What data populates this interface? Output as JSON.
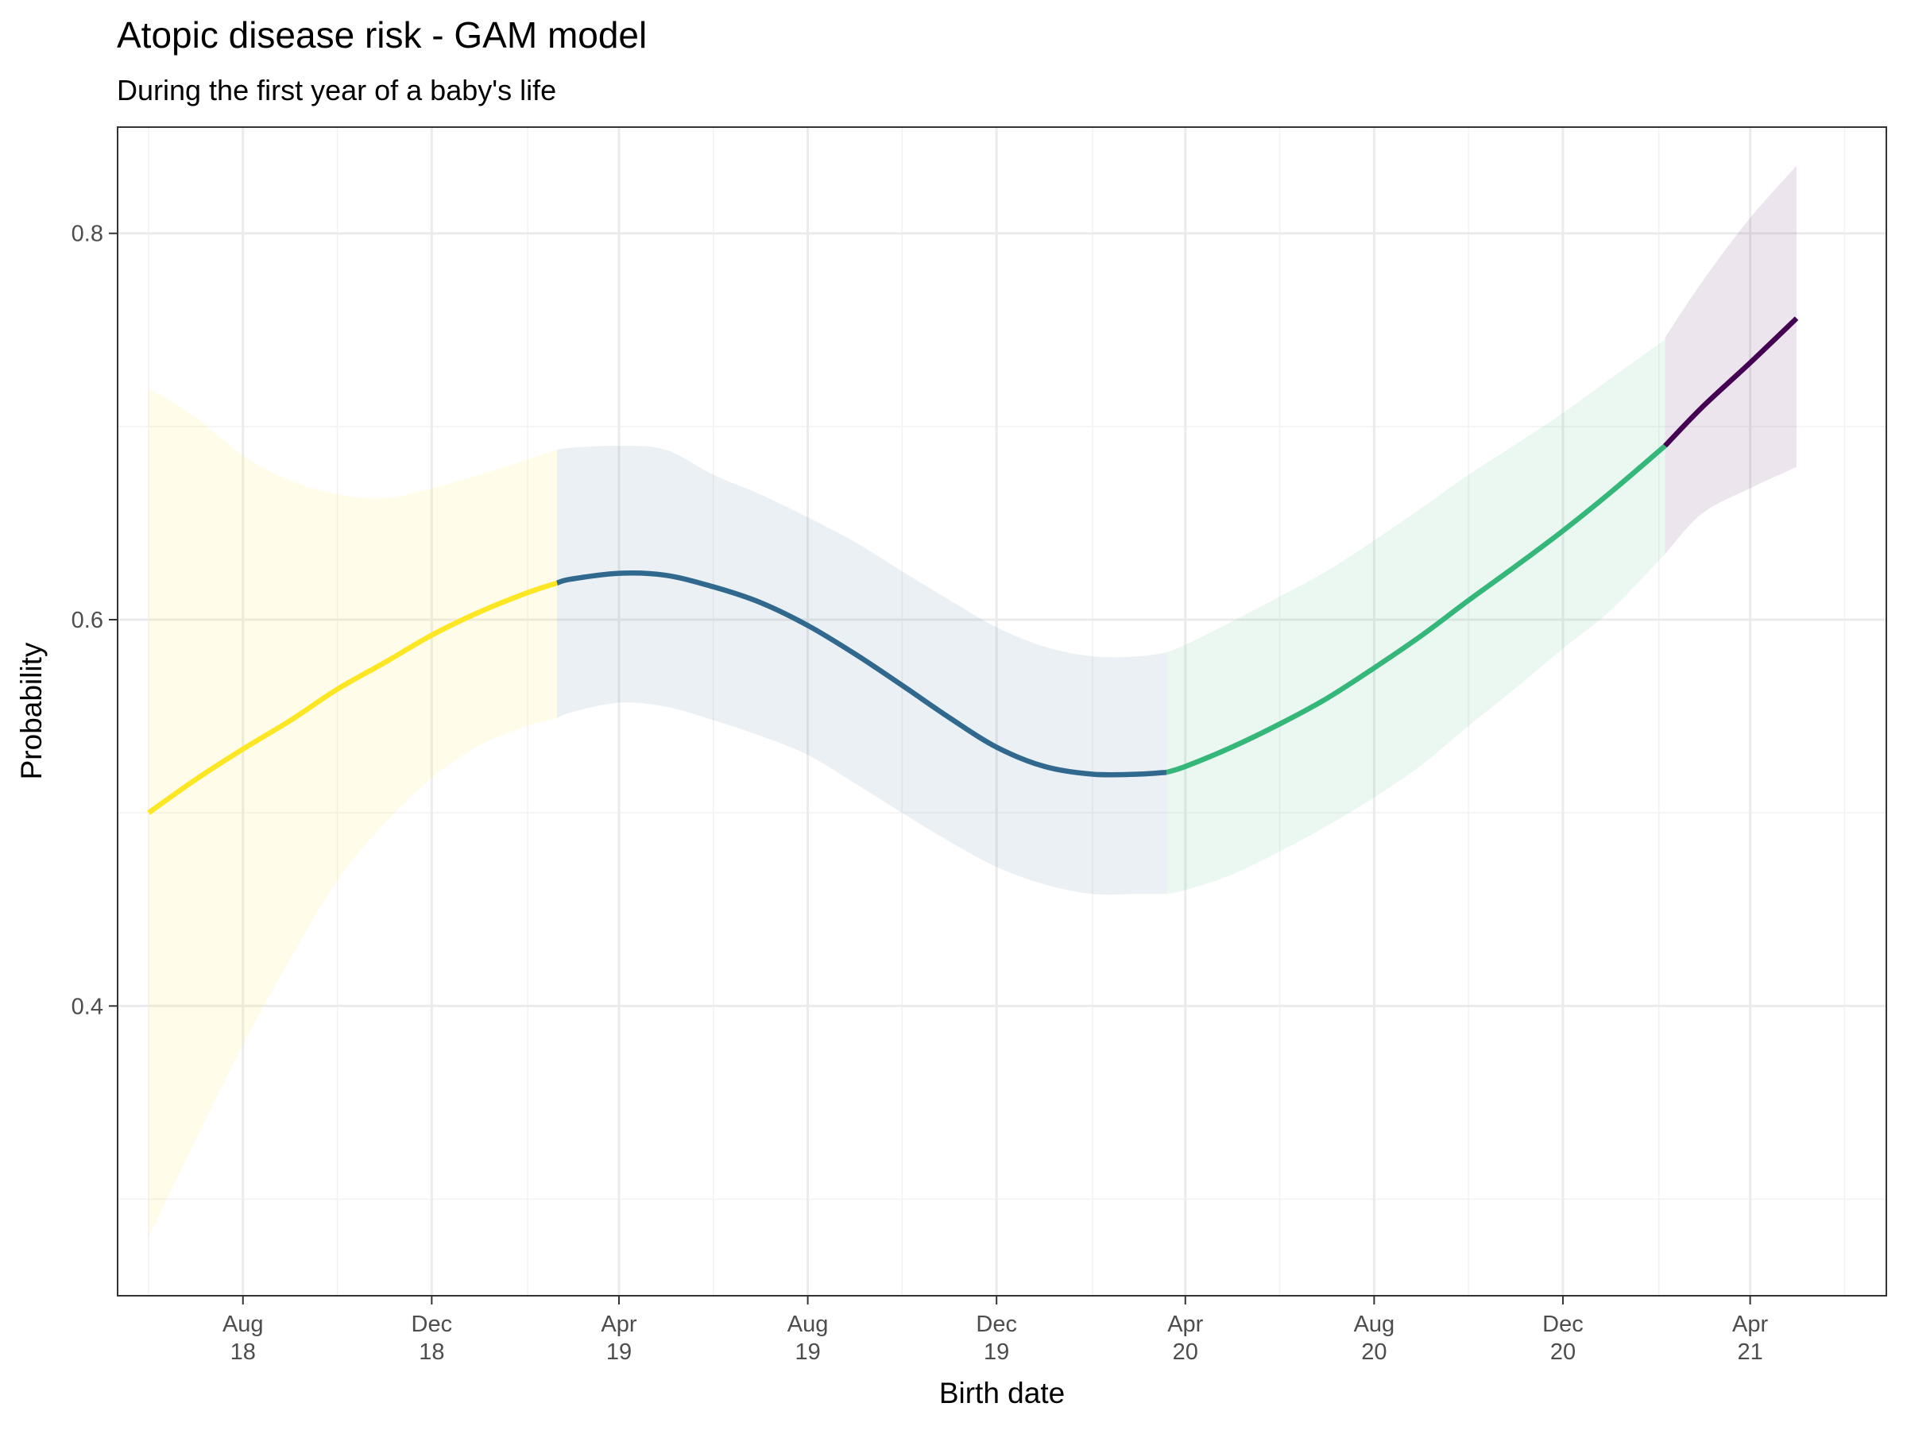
{
  "chart_data": {
    "type": "line",
    "title": "Atopic disease risk - GAM model",
    "subtitle": "During the first year of a baby's life",
    "xlabel": "Birth date",
    "ylabel": "Probability",
    "xlim": [
      "2018-05-12",
      "2021-06-28"
    ],
    "ylim": [
      0.25,
      0.855
    ],
    "x_ticks": [
      {
        "date": "2018-08-01",
        "label": [
          "Aug",
          "18"
        ]
      },
      {
        "date": "2018-12-01",
        "label": [
          "Dec",
          "18"
        ]
      },
      {
        "date": "2019-04-01",
        "label": [
          "Apr",
          "19"
        ]
      },
      {
        "date": "2019-08-01",
        "label": [
          "Aug",
          "19"
        ]
      },
      {
        "date": "2019-12-01",
        "label": [
          "Dec",
          "19"
        ]
      },
      {
        "date": "2020-04-01",
        "label": [
          "Apr",
          "20"
        ]
      },
      {
        "date": "2020-08-01",
        "label": [
          "Aug",
          "20"
        ]
      },
      {
        "date": "2020-12-01",
        "label": [
          "Dec",
          "20"
        ]
      },
      {
        "date": "2021-04-01",
        "label": [
          "Apr",
          "21"
        ]
      }
    ],
    "x_minor_ticks": [
      "2018-06-01",
      "2018-10-01",
      "2019-02-01",
      "2019-06-01",
      "2019-10-01",
      "2020-02-01",
      "2020-06-01",
      "2020-10-01",
      "2021-02-01",
      "2021-06-01"
    ],
    "y_ticks": [
      0.4,
      0.6,
      0.8
    ],
    "y_minor_ticks": [
      0.3,
      0.5,
      0.7
    ],
    "grid": true,
    "legend": "none",
    "series": [
      {
        "color": "#FDE725",
        "points": [
          {
            "x": "2018-06-01",
            "y": 0.5,
            "lo": 0.28,
            "hi": 0.72
          },
          {
            "x": "2018-07-01",
            "y": 0.517,
            "lo": 0.33,
            "hi": 0.705
          },
          {
            "x": "2018-08-01",
            "y": 0.533,
            "lo": 0.38,
            "hi": 0.685
          },
          {
            "x": "2018-09-01",
            "y": 0.548,
            "lo": 0.425,
            "hi": 0.672
          },
          {
            "x": "2018-10-01",
            "y": 0.564,
            "lo": 0.465,
            "hi": 0.665
          },
          {
            "x": "2018-11-01",
            "y": 0.578,
            "lo": 0.495,
            "hi": 0.663
          },
          {
            "x": "2018-12-01",
            "y": 0.592,
            "lo": 0.518,
            "hi": 0.668
          },
          {
            "x": "2019-01-01",
            "y": 0.604,
            "lo": 0.535,
            "hi": 0.675
          },
          {
            "x": "2019-02-01",
            "y": 0.614,
            "lo": 0.545,
            "hi": 0.683
          },
          {
            "x": "2019-02-20",
            "y": 0.619,
            "lo": 0.549,
            "hi": 0.688
          }
        ]
      },
      {
        "color": "#31688E",
        "points": [
          {
            "x": "2019-02-20",
            "y": 0.619,
            "lo": 0.549,
            "hi": 0.688
          },
          {
            "x": "2019-03-01",
            "y": 0.621,
            "lo": 0.552,
            "hi": 0.689
          },
          {
            "x": "2019-04-01",
            "y": 0.624,
            "lo": 0.557,
            "hi": 0.69
          },
          {
            "x": "2019-05-01",
            "y": 0.623,
            "lo": 0.555,
            "hi": 0.688
          },
          {
            "x": "2019-06-01",
            "y": 0.617,
            "lo": 0.548,
            "hi": 0.675
          },
          {
            "x": "2019-07-01",
            "y": 0.609,
            "lo": 0.54,
            "hi": 0.665
          },
          {
            "x": "2019-08-01",
            "y": 0.597,
            "lo": 0.53,
            "hi": 0.653
          },
          {
            "x": "2019-09-01",
            "y": 0.582,
            "lo": 0.515,
            "hi": 0.64
          },
          {
            "x": "2019-10-01",
            "y": 0.566,
            "lo": 0.5,
            "hi": 0.625
          },
          {
            "x": "2019-11-01",
            "y": 0.549,
            "lo": 0.485,
            "hi": 0.61
          },
          {
            "x": "2019-12-01",
            "y": 0.534,
            "lo": 0.472,
            "hi": 0.596
          },
          {
            "x": "2020-01-01",
            "y": 0.524,
            "lo": 0.463,
            "hi": 0.586
          },
          {
            "x": "2020-02-01",
            "y": 0.52,
            "lo": 0.458,
            "hi": 0.581
          },
          {
            "x": "2020-03-01",
            "y": 0.52,
            "lo": 0.458,
            "hi": 0.581
          },
          {
            "x": "2020-03-20",
            "y": 0.521,
            "lo": 0.458,
            "hi": 0.583
          }
        ]
      },
      {
        "color": "#35B779",
        "points": [
          {
            "x": "2020-03-20",
            "y": 0.521,
            "lo": 0.458,
            "hi": 0.583
          },
          {
            "x": "2020-04-01",
            "y": 0.524,
            "lo": 0.46,
            "hi": 0.587
          },
          {
            "x": "2020-05-01",
            "y": 0.534,
            "lo": 0.468,
            "hi": 0.599
          },
          {
            "x": "2020-06-01",
            "y": 0.546,
            "lo": 0.48,
            "hi": 0.612
          },
          {
            "x": "2020-07-01",
            "y": 0.559,
            "lo": 0.493,
            "hi": 0.625
          },
          {
            "x": "2020-08-01",
            "y": 0.575,
            "lo": 0.508,
            "hi": 0.641
          },
          {
            "x": "2020-09-01",
            "y": 0.592,
            "lo": 0.525,
            "hi": 0.658
          },
          {
            "x": "2020-10-01",
            "y": 0.61,
            "lo": 0.545,
            "hi": 0.675
          },
          {
            "x": "2020-11-01",
            "y": 0.628,
            "lo": 0.565,
            "hi": 0.691
          },
          {
            "x": "2020-12-01",
            "y": 0.646,
            "lo": 0.585,
            "hi": 0.707
          },
          {
            "x": "2021-01-01",
            "y": 0.666,
            "lo": 0.605,
            "hi": 0.725
          },
          {
            "x": "2021-02-05",
            "y": 0.69,
            "lo": 0.634,
            "hi": 0.745
          }
        ]
      },
      {
        "color": "#440154",
        "points": [
          {
            "x": "2021-02-05",
            "y": 0.69,
            "lo": 0.634,
            "hi": 0.746
          },
          {
            "x": "2021-03-01",
            "y": 0.71,
            "lo": 0.655,
            "hi": 0.775
          },
          {
            "x": "2021-04-01",
            "y": 0.733,
            "lo": 0.668,
            "hi": 0.808
          },
          {
            "x": "2021-05-01",
            "y": 0.756,
            "lo": 0.679,
            "hi": 0.835
          }
        ]
      }
    ]
  }
}
